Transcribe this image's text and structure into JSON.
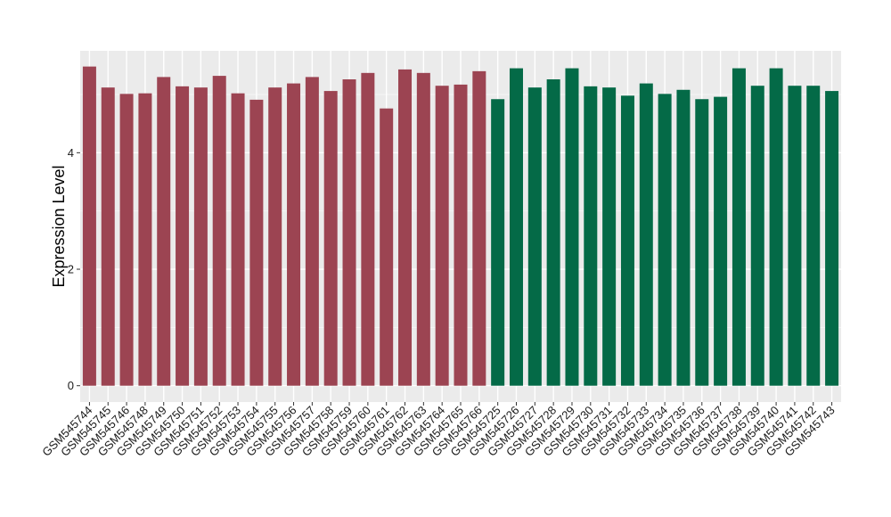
{
  "chart_data": {
    "type": "bar",
    "xlabel": "",
    "ylabel": "Expression Level",
    "ylim": [
      -0.28,
      5.75
    ],
    "yticks": [
      0,
      2,
      4
    ],
    "grid": true,
    "background": "#ebebeb",
    "categories": [
      "GSM545744",
      "GSM545745",
      "GSM545746",
      "GSM545748",
      "GSM545749",
      "GSM545750",
      "GSM545751",
      "GSM545752",
      "GSM545753",
      "GSM545754",
      "GSM545755",
      "GSM545756",
      "GSM545757",
      "GSM545758",
      "GSM545759",
      "GSM545760",
      "GSM545761",
      "GSM545762",
      "GSM545763",
      "GSM545764",
      "GSM545765",
      "GSM545766",
      "GSM545725",
      "GSM545726",
      "GSM545727",
      "GSM545728",
      "GSM545729",
      "GSM545730",
      "GSM545731",
      "GSM545732",
      "GSM545733",
      "GSM545734",
      "GSM545735",
      "GSM545736",
      "GSM545737",
      "GSM545738",
      "GSM545739",
      "GSM545740",
      "GSM545741",
      "GSM545742",
      "GSM545743"
    ],
    "values": [
      5.48,
      5.12,
      5.01,
      5.02,
      5.3,
      5.14,
      5.12,
      5.32,
      5.02,
      4.91,
      5.12,
      5.19,
      5.3,
      5.06,
      5.26,
      5.37,
      4.76,
      5.43,
      5.37,
      5.15,
      5.17,
      5.4,
      4.92,
      5.45,
      5.12,
      5.26,
      5.45,
      5.14,
      5.12,
      4.98,
      5.19,
      5.01,
      5.08,
      4.92,
      4.96,
      5.45,
      5.15,
      5.45,
      5.15,
      5.15,
      5.06
    ],
    "colors": [
      "#9c4452",
      "#9c4452",
      "#9c4452",
      "#9c4452",
      "#9c4452",
      "#9c4452",
      "#9c4452",
      "#9c4452",
      "#9c4452",
      "#9c4452",
      "#9c4452",
      "#9c4452",
      "#9c4452",
      "#9c4452",
      "#9c4452",
      "#9c4452",
      "#9c4452",
      "#9c4452",
      "#9c4452",
      "#9c4452",
      "#9c4452",
      "#9c4452",
      "#046a47",
      "#046a47",
      "#046a47",
      "#046a47",
      "#046a47",
      "#046a47",
      "#046a47",
      "#046a47",
      "#046a47",
      "#046a47",
      "#046a47",
      "#046a47",
      "#046a47",
      "#046a47",
      "#046a47",
      "#046a47",
      "#046a47",
      "#046a47",
      "#046a47"
    ]
  }
}
